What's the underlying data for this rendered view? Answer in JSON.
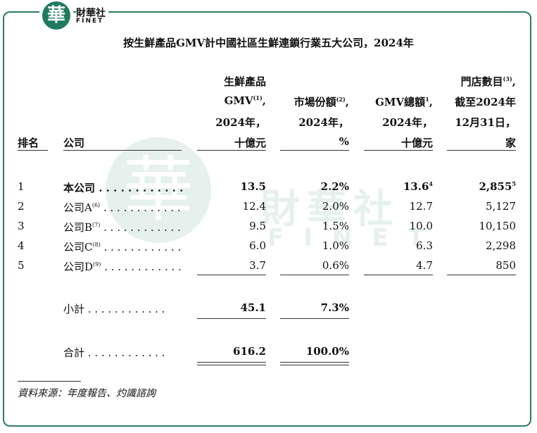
{
  "logo": {
    "mark": "華",
    "name": "財華社",
    "brand": "FINET"
  },
  "watermark": {
    "name": "財華社",
    "brand": "FINET",
    "mark": "華"
  },
  "title": "按生鮮產品GMV計中國社區生鮮連鎖行業五大公司，2024年",
  "table": {
    "headers": [
      [
        {
          "text": "排名"
        }
      ],
      [
        {
          "text": "公司"
        }
      ],
      [
        {
          "text": "生鮮產品"
        },
        {
          "text": "GMV",
          "sup": "(1)",
          "tail": ","
        },
        {
          "text": "2024年，"
        },
        {
          "text": "十億元"
        }
      ],
      [
        {
          "text": "市場份額",
          "sup": "(2)",
          "tail": ","
        },
        {
          "text": "2024年，"
        },
        {
          "text": "%"
        }
      ],
      [
        {
          "text": "GMV總額",
          "sup": "1",
          "tail": ","
        },
        {
          "text": "2024年，"
        },
        {
          "text": "十億元"
        }
      ],
      [
        {
          "text": "門店數目",
          "sup": "(3)",
          "tail": ","
        },
        {
          "text": "截至2024年"
        },
        {
          "text": "12月31日，"
        },
        {
          "text": "家"
        }
      ]
    ],
    "rows": [
      {
        "rank": "1",
        "company": "本公司",
        "values": [
          "13.5",
          "2.2%",
          "13.6",
          "2,855"
        ],
        "value_sups": [
          null,
          null,
          "4",
          "5"
        ],
        "bold": true
      },
      {
        "rank": "2",
        "company": "公司A",
        "company_sup": "(6)",
        "values": [
          "12.4",
          "2.0%",
          "12.7",
          "5,127"
        ]
      },
      {
        "rank": "3",
        "company": "公司B",
        "company_sup": "(7)",
        "values": [
          "9.5",
          "1.5%",
          "10.0",
          "10,150"
        ]
      },
      {
        "rank": "4",
        "company": "公司C",
        "company_sup": "(8)",
        "values": [
          "6.0",
          "1.0%",
          "6.3",
          "2,298"
        ]
      },
      {
        "rank": "5",
        "company": "公司D",
        "company_sup": "(9)",
        "values": [
          "3.7",
          "0.6%",
          "4.7",
          "850"
        ]
      }
    ],
    "subtotal": {
      "label": "小計",
      "values": [
        "45.1",
        "7.3%"
      ]
    },
    "total": {
      "label": "合計",
      "values": [
        "616.2",
        "100.0%"
      ]
    }
  },
  "source": "資料來源：年度報告、灼識諮詢"
}
